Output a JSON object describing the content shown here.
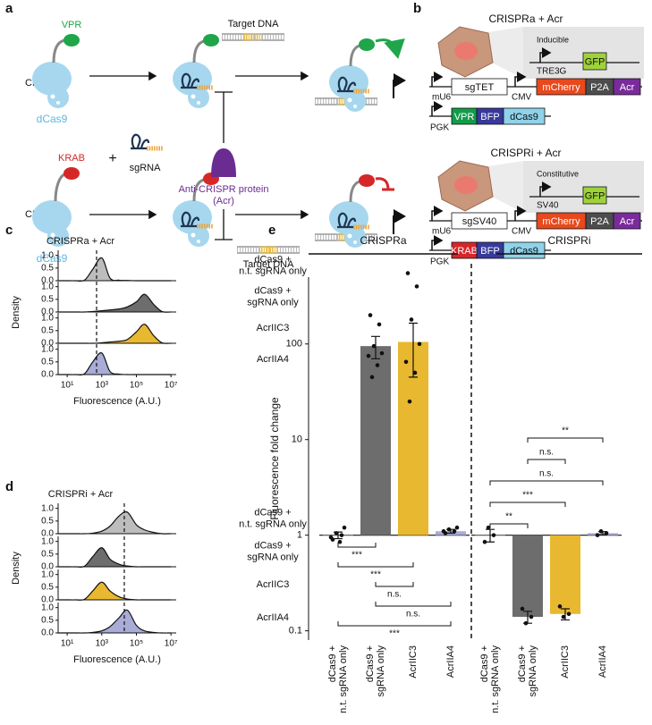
{
  "panel_a": {
    "label": "a",
    "crispra": "CRISPRa",
    "crispri": "CRISPRi",
    "activator": "VPR",
    "repressor": "KRAB",
    "dcas9": [
      "dCas9",
      "dCas9"
    ],
    "plus": "+",
    "sgrna": "sgRNA",
    "target_dna": [
      "Target DNA",
      "Target DNA"
    ],
    "acr": [
      "Anti-CRISPR protein",
      "(Acr)"
    ]
  },
  "panel_b": {
    "label": "b",
    "sections": [
      {
        "title": "CRISPRa + Acr",
        "reporter": {
          "tag": "Inducible",
          "promoter": "TRE3G",
          "gene": "GFP"
        },
        "guide": {
          "promoter": "mU6",
          "cassette": "sgTET"
        },
        "effector_promoter": "CMV",
        "effector": [
          "mCherry",
          "P2A",
          "Acr"
        ],
        "fusion": {
          "promoter": "PGK",
          "parts": [
            "VPR",
            "BFP",
            "dCas9"
          ]
        }
      },
      {
        "title": "CRISPRi + Acr",
        "reporter": {
          "tag": "Constitutive",
          "promoter": "SV40",
          "gene": "GFP"
        },
        "guide": {
          "promoter": "mU6",
          "cassette": "sgSV40"
        },
        "effector_promoter": "CMV",
        "effector": [
          "mCherry",
          "P2A",
          "Acr"
        ],
        "fusion": {
          "promoter": "PGK",
          "parts": [
            "KRAB",
            "BFP",
            "dCas9"
          ]
        }
      }
    ]
  },
  "chart_data": [
    {
      "label": "c",
      "type": "density",
      "title": "CRISPRa + Acr",
      "ylabel": "Density",
      "xlabel": "Fluorescence (A.U.)",
      "log_x": true,
      "xlim": [
        3,
        20000000
      ],
      "xticks": [
        {
          "value": 10,
          "label": "10¹"
        },
        {
          "value": 1000,
          "label": "10³"
        },
        {
          "value": 100000,
          "label": "10⁵"
        },
        {
          "value": 10000000,
          "label": "10⁷"
        }
      ],
      "ylim": [
        0,
        1.2
      ],
      "yticks": [
        {
          "value": 0,
          "label": "0.0"
        },
        {
          "value": 0.5,
          "label": "0.5"
        },
        {
          "value": 1,
          "label": "1.0"
        }
      ],
      "ref_line": 500,
      "x": [
        3,
        10,
        30,
        100,
        300,
        1000,
        3000,
        10000,
        30000,
        100000,
        300000,
        1000000,
        3000000,
        10000000
      ],
      "series": [
        {
          "name": [
            "dCas9 +",
            "n.t. sgRNA only"
          ],
          "color": "#bdbdbd",
          "values": [
            0,
            0,
            0,
            0.02,
            0.45,
            0.9,
            0.1,
            0.02,
            0.01,
            0,
            0,
            0,
            0,
            0
          ]
        },
        {
          "name": [
            "dCas9 +",
            "sgRNA only"
          ],
          "color": "#6d6d6d",
          "values": [
            0,
            0,
            0,
            0,
            0.02,
            0.05,
            0.08,
            0.12,
            0.2,
            0.4,
            0.7,
            0.3,
            0.02,
            0
          ]
        },
        {
          "name": [
            "AcrIIC3"
          ],
          "color": "#e8b830",
          "values": [
            0,
            0,
            0,
            0,
            0,
            0.02,
            0.05,
            0.08,
            0.15,
            0.45,
            0.75,
            0.3,
            0.02,
            0
          ]
        },
        {
          "name": [
            "AcrIIA4"
          ],
          "color": "#a9acd6",
          "values": [
            0,
            0,
            0,
            0.03,
            0.5,
            0.85,
            0.12,
            0.02,
            0,
            0,
            0,
            0,
            0,
            0
          ]
        }
      ]
    },
    {
      "label": "d",
      "type": "density",
      "title": "CRISPRi + Acr",
      "ylabel": "Density",
      "xlabel": "Fluorescence (A.U.)",
      "log_x": true,
      "xlim": [
        3,
        20000000
      ],
      "xticks": [
        {
          "value": 10,
          "label": "10¹"
        },
        {
          "value": 1000,
          "label": "10³"
        },
        {
          "value": 100000,
          "label": "10⁵"
        },
        {
          "value": 10000000,
          "label": "10⁷"
        }
      ],
      "ylim": [
        0,
        1.2
      ],
      "yticks": [
        {
          "value": 0,
          "label": "0.0"
        },
        {
          "value": 0.5,
          "label": "0.5"
        },
        {
          "value": 1,
          "label": "1.0"
        }
      ],
      "ref_line": 20000,
      "x": [
        3,
        10,
        30,
        100,
        300,
        1000,
        3000,
        10000,
        30000,
        100000,
        300000,
        1000000,
        3000000,
        10000000
      ],
      "series": [
        {
          "name": [
            "dCas9 +",
            "n.t. sgRNA only"
          ],
          "color": "#bdbdbd",
          "values": [
            0,
            0,
            0,
            0,
            0.02,
            0.1,
            0.3,
            0.7,
            0.85,
            0.35,
            0.15,
            0.05,
            0,
            0
          ]
        },
        {
          "name": [
            "dCas9 +",
            "sgRNA only"
          ],
          "color": "#6d6d6d",
          "values": [
            0,
            0,
            0,
            0.02,
            0.4,
            0.75,
            0.3,
            0.1,
            0.03,
            0,
            0,
            0,
            0,
            0
          ]
        },
        {
          "name": [
            "AcrIIC3"
          ],
          "color": "#e8b830",
          "values": [
            0,
            0,
            0,
            0.02,
            0.35,
            0.7,
            0.35,
            0.12,
            0.03,
            0,
            0,
            0,
            0,
            0
          ]
        },
        {
          "name": [
            "AcrIIA4"
          ],
          "color": "#a9acd6",
          "values": [
            0,
            0,
            0,
            0,
            0.02,
            0.08,
            0.25,
            0.6,
            0.9,
            0.3,
            0.08,
            0.02,
            0,
            0
          ]
        }
      ]
    },
    {
      "label": "e",
      "type": "bar",
      "ylabel": "Fluorescence fold change",
      "log_y": true,
      "ylim": [
        0.08,
        500
      ],
      "yticks": [
        0.1,
        1,
        10,
        100
      ],
      "baseline": 1,
      "groups": [
        {
          "name": "CRISPRa",
          "categories": [
            [
              "dCas9 +",
              "n.t. sgRNA only"
            ],
            [
              "dCas9 +",
              "sgRNA only"
            ],
            [
              "AcrIIC3"
            ],
            [
              "AcrIIA4"
            ]
          ],
          "colors": [
            "#bdbdbd",
            "#6d6d6d",
            "#e8b830",
            "#a9acd6"
          ],
          "values": [
            1.0,
            95,
            105,
            1.1
          ],
          "errors": [
            0.08,
            25,
            60,
            0.05
          ],
          "points": [
            [
              0.9,
              1.0,
              1.05,
              1.2,
              0.95,
              0.85
            ],
            [
              200,
              160,
              95,
              80,
              75,
              60,
              45
            ],
            [
              550,
              400,
              180,
              100,
              65,
              50,
              25
            ],
            [
              1.05,
              1.1,
              1.15,
              1.2,
              1.1
            ]
          ],
          "comparisons": [
            {
              "pair": [
                0,
                1
              ],
              "label": "***"
            },
            {
              "pair": [
                0,
                2
              ],
              "label": "***"
            },
            {
              "pair": [
                1,
                2
              ],
              "label": "n.s."
            },
            {
              "pair": [
                1,
                3
              ],
              "label": "n.s."
            },
            {
              "pair": [
                0,
                3
              ],
              "label": "***"
            }
          ]
        },
        {
          "name": "CRISPRi",
          "categories": [
            [
              "dCas9 +",
              "n.t. sgRNA only"
            ],
            [
              "dCas9 +",
              "sgRNA only"
            ],
            [
              "AcrIIC3"
            ],
            [
              "AcrIIA4"
            ]
          ],
          "colors": [
            "#bdbdbd",
            "#6d6d6d",
            "#e8b830",
            "#a9acd6"
          ],
          "values": [
            1.0,
            0.14,
            0.15,
            1.05
          ],
          "errors": [
            0.15,
            0.02,
            0.02,
            0.04
          ],
          "points": [
            [
              0.85,
              1.0,
              1.2
            ],
            [
              0.17,
              0.14,
              0.12
            ],
            [
              0.18,
              0.15,
              0.14
            ],
            [
              1.0,
              1.05,
              1.1
            ]
          ],
          "comparisons": [
            {
              "pair": [
                0,
                1
              ],
              "label": "**"
            },
            {
              "pair": [
                0,
                2
              ],
              "label": "***"
            },
            {
              "pair": [
                0,
                3
              ],
              "label": "n.s."
            },
            {
              "pair": [
                1,
                2
              ],
              "label": "n.s."
            },
            {
              "pair": [
                1,
                3
              ],
              "label": "**"
            }
          ]
        }
      ]
    }
  ]
}
